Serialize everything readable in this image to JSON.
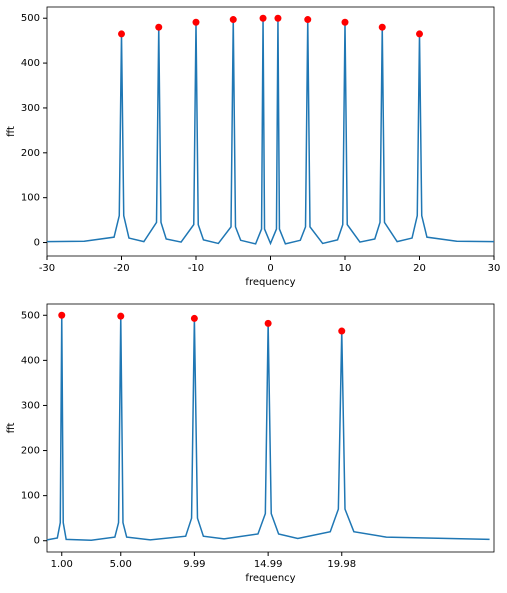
{
  "chart_data": [
    {
      "type": "line",
      "xlabel": "frequency",
      "ylabel": "fft",
      "color": "#1f77b4",
      "x": [
        -30,
        -25,
        -21,
        -20.3,
        -20,
        -19.7,
        -19,
        -17,
        -15.3,
        -15,
        -14.7,
        -14,
        -12,
        -10.3,
        -10,
        -9.7,
        -9,
        -7,
        -5.3,
        -5,
        -4.7,
        -4,
        -2,
        -1.2,
        -1,
        -0.8,
        0,
        0.8,
        1,
        1.2,
        2,
        4,
        4.7,
        5,
        5.3,
        7,
        9,
        9.7,
        10,
        10.3,
        12,
        14,
        14.7,
        15,
        15.3,
        17,
        19,
        19.7,
        20,
        20.3,
        21,
        25,
        30
      ],
      "values": [
        2,
        3,
        12,
        60,
        465,
        60,
        10,
        2,
        45,
        480,
        45,
        8,
        1,
        40,
        491,
        40,
        6,
        -2,
        35,
        497,
        35,
        5,
        -3,
        30,
        500,
        30,
        -2,
        30,
        500,
        30,
        -3,
        5,
        35,
        497,
        35,
        -2,
        6,
        40,
        491,
        40,
        1,
        8,
        45,
        480,
        45,
        2,
        10,
        60,
        465,
        60,
        12,
        3,
        2
      ],
      "peaks": {
        "x": [
          -20,
          -15,
          -10,
          -5,
          -1,
          1,
          5,
          10,
          15,
          20
        ],
        "values": [
          465,
          480,
          491,
          497,
          500,
          500,
          497,
          491,
          480,
          465
        ],
        "color": "#ff0000"
      },
      "xlim": [
        -30,
        30
      ],
      "ylim": [
        -30,
        525
      ],
      "xticks": [
        -30,
        -20,
        -10,
        0,
        10,
        20,
        30
      ],
      "yticks": [
        0,
        100,
        200,
        300,
        400,
        500
      ]
    },
    {
      "type": "line",
      "xlabel": "frequency",
      "ylabel": "fft",
      "color": "#1f77b4",
      "x": [
        0,
        0.7,
        0.9,
        1,
        1.1,
        1.3,
        3,
        4.6,
        4.85,
        5,
        5.15,
        5.4,
        7,
        9.4,
        9.8,
        9.99,
        10.2,
        10.6,
        12,
        14.3,
        14.8,
        14.99,
        15.2,
        15.7,
        17,
        19.2,
        19.75,
        19.98,
        20.2,
        20.8,
        23,
        30
      ],
      "values": [
        2,
        6,
        40,
        500,
        40,
        3,
        1,
        8,
        40,
        498,
        40,
        8,
        2,
        10,
        50,
        493,
        50,
        10,
        4,
        15,
        60,
        482,
        60,
        15,
        5,
        20,
        70,
        465,
        70,
        20,
        8,
        3
      ],
      "peaks": {
        "x": [
          1,
          5,
          9.99,
          14.99,
          19.98
        ],
        "values": [
          500,
          498,
          493,
          482,
          465
        ],
        "color": "#ff0000"
      },
      "xlim": [
        0,
        30.3
      ],
      "ylim": [
        -25,
        525
      ],
      "xticks": [
        {
          "value": 1,
          "label": "1.00"
        },
        {
          "value": 5,
          "label": "5.00"
        },
        9.99,
        14.99,
        19.98
      ],
      "yticks": [
        0,
        100,
        200,
        300,
        400,
        500
      ]
    }
  ]
}
